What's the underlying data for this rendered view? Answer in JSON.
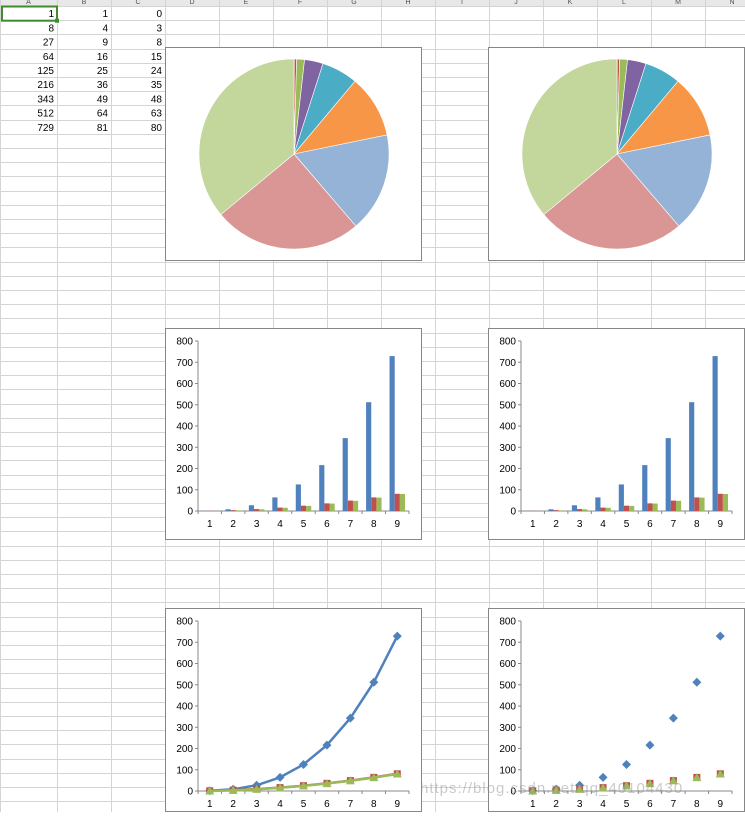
{
  "sheet": {
    "column_headers": [
      "A",
      "B",
      "C",
      "D",
      "E",
      "F",
      "G",
      "H",
      "I",
      "J",
      "K",
      "L",
      "M",
      "N"
    ],
    "selected_cell": "A1",
    "columns": {
      "A": [
        1,
        8,
        27,
        64,
        125,
        216,
        343,
        512,
        729
      ],
      "B": [
        1,
        4,
        9,
        16,
        25,
        36,
        49,
        64,
        81
      ],
      "C": [
        0,
        3,
        8,
        15,
        24,
        35,
        48,
        63,
        80
      ]
    },
    "grid_color": "#d4d4d4",
    "header_bg": "#e8e8e8",
    "selection_color": "#3f8c2e"
  },
  "watermark": "https://blog.csdn.net/qq_40104430",
  "chart_data": [
    {
      "type": "pie",
      "values": [
        1,
        8,
        27,
        64,
        125,
        216,
        343,
        512,
        729
      ],
      "colors": [
        "#4f81bd",
        "#c0504d",
        "#9bbb59",
        "#8064a2",
        "#4bacc6",
        "#f79646",
        "#95b3d7",
        "#d99694",
        "#c3d69b"
      ]
    },
    {
      "type": "pie",
      "values": [
        1,
        8,
        27,
        64,
        125,
        216,
        343,
        512,
        729
      ],
      "colors": [
        "#4f81bd",
        "#c0504d",
        "#9bbb59",
        "#8064a2",
        "#4bacc6",
        "#f79646",
        "#95b3d7",
        "#d99694",
        "#c3d69b"
      ]
    },
    {
      "type": "bar",
      "categories": [
        "1",
        "2",
        "3",
        "4",
        "5",
        "6",
        "7",
        "8",
        "9"
      ],
      "series": [
        {
          "values": [
            1,
            8,
            27,
            64,
            125,
            216,
            343,
            512,
            729
          ],
          "color": "#4f81bd"
        },
        {
          "values": [
            1,
            4,
            9,
            16,
            25,
            36,
            49,
            64,
            81
          ],
          "color": "#c0504d"
        },
        {
          "values": [
            0,
            3,
            8,
            15,
            24,
            35,
            48,
            63,
            80
          ],
          "color": "#9bbb59"
        }
      ],
      "ylim": [
        0,
        800
      ],
      "yticks": [
        0,
        100,
        200,
        300,
        400,
        500,
        600,
        700,
        800
      ]
    },
    {
      "type": "bar",
      "categories": [
        "1",
        "2",
        "3",
        "4",
        "5",
        "6",
        "7",
        "8",
        "9"
      ],
      "series": [
        {
          "values": [
            1,
            8,
            27,
            64,
            125,
            216,
            343,
            512,
            729
          ],
          "color": "#4f81bd"
        },
        {
          "values": [
            1,
            4,
            9,
            16,
            25,
            36,
            49,
            64,
            81
          ],
          "color": "#c0504d"
        },
        {
          "values": [
            0,
            3,
            8,
            15,
            24,
            35,
            48,
            63,
            80
          ],
          "color": "#9bbb59"
        }
      ],
      "ylim": [
        0,
        800
      ],
      "yticks": [
        0,
        100,
        200,
        300,
        400,
        500,
        600,
        700,
        800
      ]
    },
    {
      "type": "line",
      "categories": [
        "1",
        "2",
        "3",
        "4",
        "5",
        "6",
        "7",
        "8",
        "9"
      ],
      "series": [
        {
          "values": [
            1,
            8,
            27,
            64,
            125,
            216,
            343,
            512,
            729
          ],
          "color": "#4f81bd",
          "marker": "diamond"
        },
        {
          "values": [
            1,
            4,
            9,
            16,
            25,
            36,
            49,
            64,
            81
          ],
          "color": "#c0504d",
          "marker": "square"
        },
        {
          "values": [
            0,
            3,
            8,
            15,
            24,
            35,
            48,
            63,
            80
          ],
          "color": "#9bbb59",
          "marker": "triangle"
        }
      ],
      "ylim": [
        0,
        800
      ],
      "yticks": [
        0,
        100,
        200,
        300,
        400,
        500,
        600,
        700,
        800
      ]
    },
    {
      "type": "scatter",
      "categories": [
        "1",
        "2",
        "3",
        "4",
        "5",
        "6",
        "7",
        "8",
        "9"
      ],
      "series": [
        {
          "values": [
            1,
            8,
            27,
            64,
            125,
            216,
            343,
            512,
            729
          ],
          "color": "#4f81bd",
          "marker": "diamond"
        },
        {
          "values": [
            1,
            4,
            9,
            16,
            25,
            36,
            49,
            64,
            81
          ],
          "color": "#c0504d",
          "marker": "square"
        },
        {
          "values": [
            0,
            3,
            8,
            15,
            24,
            35,
            48,
            63,
            80
          ],
          "color": "#9bbb59",
          "marker": "triangle"
        }
      ],
      "ylim": [
        0,
        800
      ],
      "yticks": [
        0,
        100,
        200,
        300,
        400,
        500,
        600,
        700,
        800
      ]
    }
  ]
}
